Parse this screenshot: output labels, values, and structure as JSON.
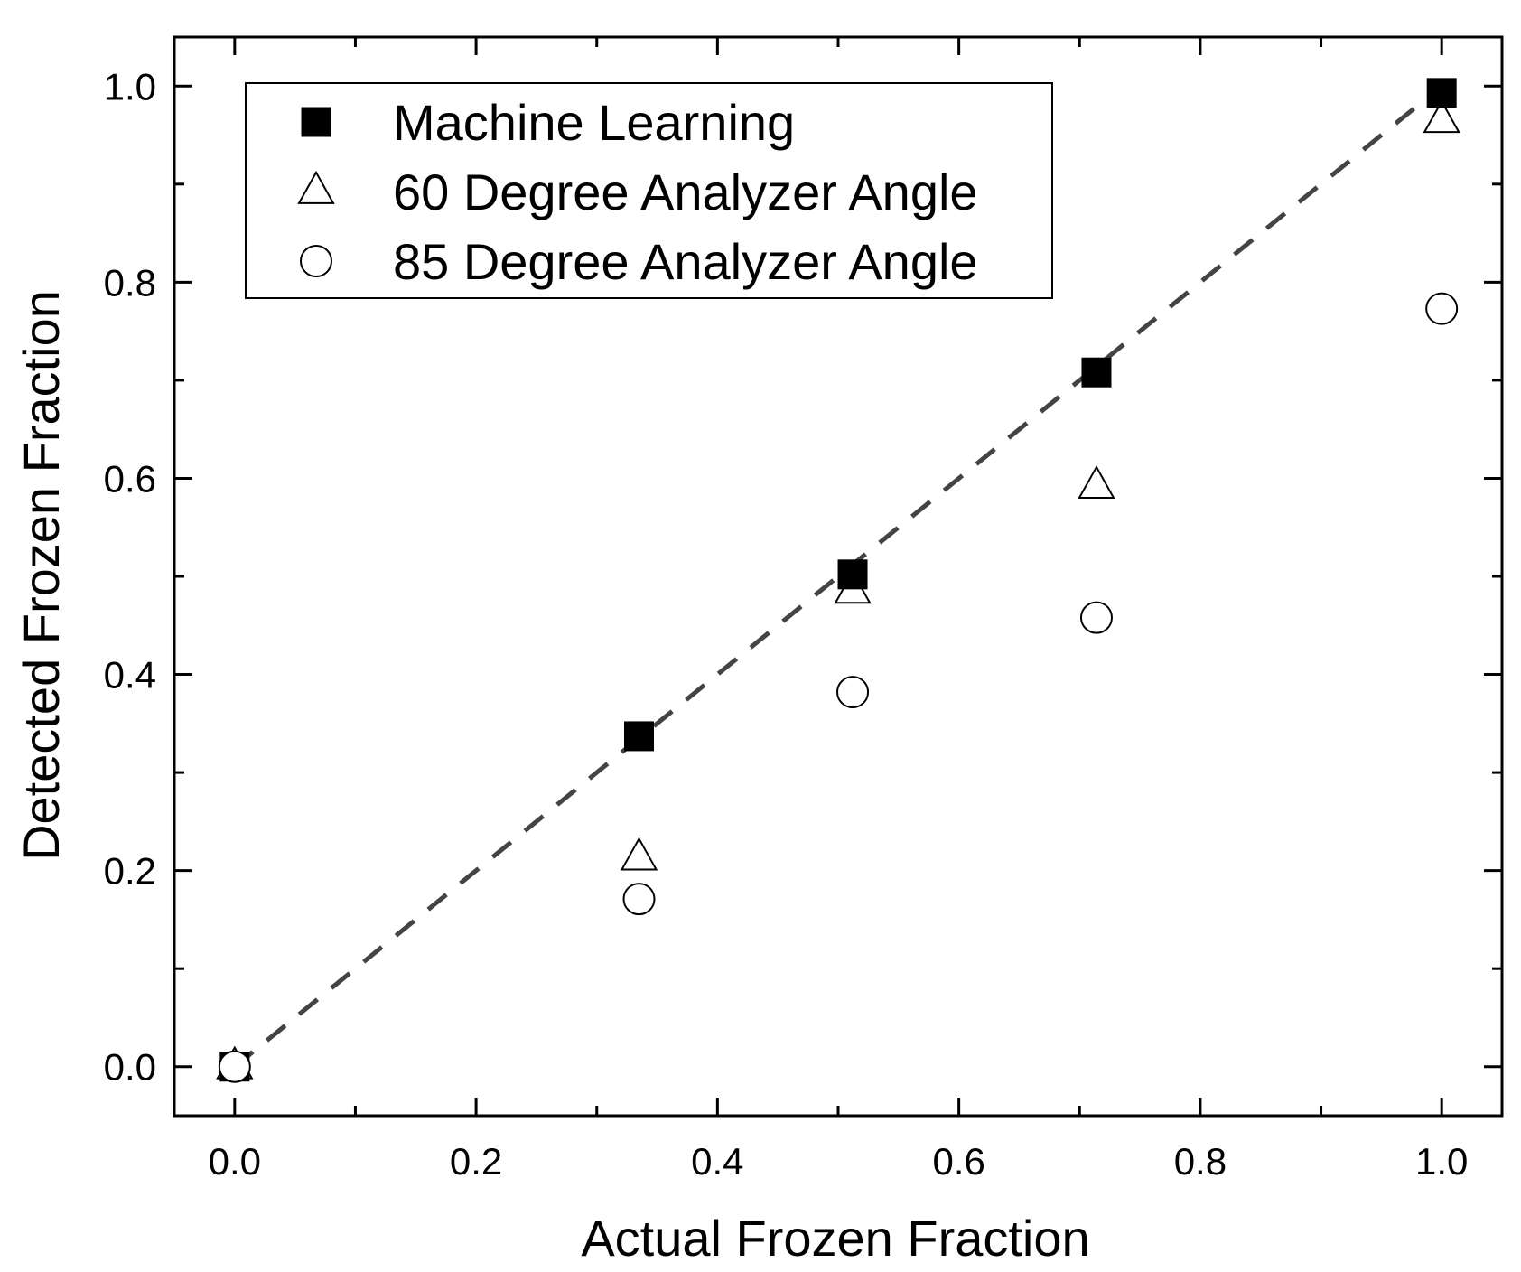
{
  "chart_data": {
    "type": "scatter",
    "title": "",
    "xlabel": "Actual Frozen Fraction",
    "ylabel": "Detected Frozen Fraction",
    "xlim": [
      -0.05,
      1.05
    ],
    "ylim": [
      -0.05,
      1.05
    ],
    "x_ticks": [
      0.0,
      0.2,
      0.4,
      0.6,
      0.8,
      1.0
    ],
    "y_ticks": [
      0.0,
      0.2,
      0.4,
      0.6,
      0.8,
      1.0
    ],
    "x_tick_labels": [
      "0.0",
      "0.2",
      "0.4",
      "0.6",
      "0.8",
      "1.0"
    ],
    "y_tick_labels": [
      "0.0",
      "0.2",
      "0.4",
      "0.6",
      "0.8",
      "1.0"
    ],
    "grid": false,
    "legend_position": "top-left",
    "series": [
      {
        "name": "Machine Learning",
        "marker": "filled-square",
        "color": "#000000",
        "points": [
          {
            "x": 0.0,
            "y": 0.0
          },
          {
            "x": 0.335,
            "y": 0.337
          },
          {
            "x": 0.512,
            "y": 0.502
          },
          {
            "x": 0.714,
            "y": 0.708
          },
          {
            "x": 1.0,
            "y": 0.993
          }
        ]
      },
      {
        "name": "60 Degree Analyzer Angle",
        "marker": "open-triangle",
        "color": "#000000",
        "points": [
          {
            "x": 0.0,
            "y": 0.0
          },
          {
            "x": 0.335,
            "y": 0.213
          },
          {
            "x": 0.512,
            "y": 0.485
          },
          {
            "x": 0.714,
            "y": 0.592
          },
          {
            "x": 1.0,
            "y": 0.965
          }
        ]
      },
      {
        "name": "85 Degree Analyzer Angle",
        "marker": "open-circle",
        "color": "#000000",
        "points": [
          {
            "x": 0.0,
            "y": 0.0
          },
          {
            "x": 0.335,
            "y": 0.171
          },
          {
            "x": 0.512,
            "y": 0.382
          },
          {
            "x": 0.714,
            "y": 0.458
          },
          {
            "x": 1.0,
            "y": 0.773
          }
        ]
      }
    ],
    "reference_line": {
      "style": "dashed",
      "color": "#444444",
      "from": {
        "x": 0.0,
        "y": 0.0
      },
      "to": {
        "x": 1.0,
        "y": 1.0
      }
    }
  }
}
